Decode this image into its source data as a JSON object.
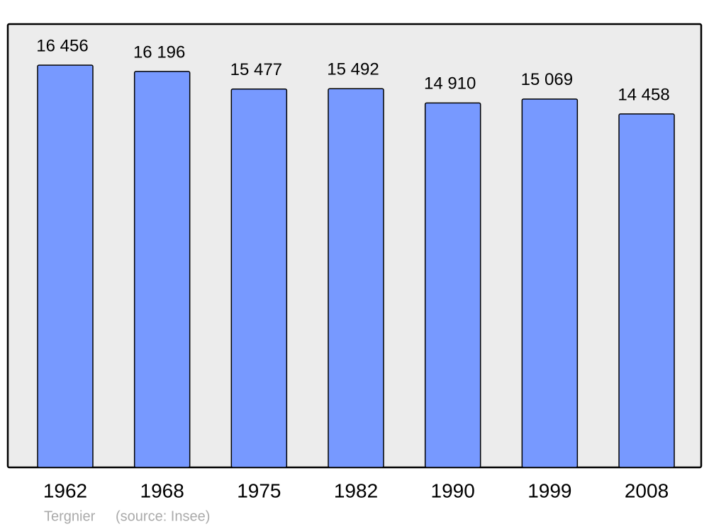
{
  "chart_data": {
    "type": "bar",
    "categories": [
      "1962",
      "1968",
      "1975",
      "1982",
      "1990",
      "1999",
      "2008"
    ],
    "values": [
      16456,
      16196,
      15477,
      15492,
      14910,
      15069,
      14458
    ],
    "value_labels": [
      "16 456",
      "16 196",
      "15 477",
      "15 492",
      "14 910",
      "15 069",
      "14 458"
    ],
    "color": "#7799ff",
    "ylim": [
      0,
      18135
    ],
    "place": "Tergnier",
    "source": "(source: Insee)"
  }
}
